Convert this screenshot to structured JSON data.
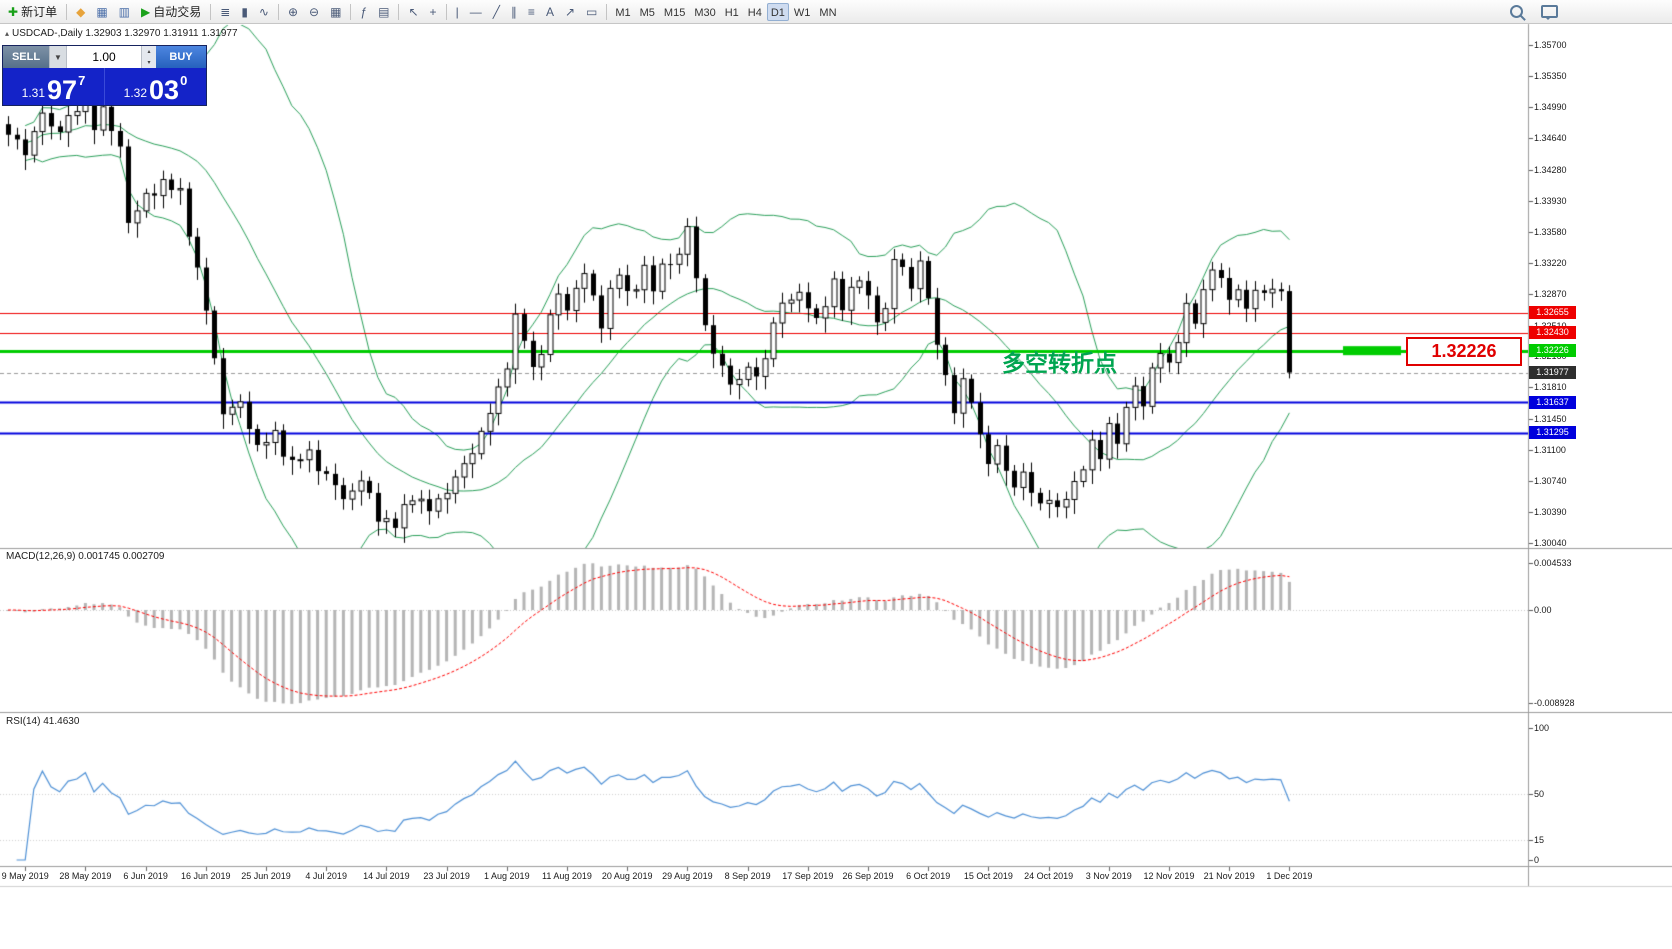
{
  "icons": {
    "collapse": "▴",
    "spinner_up": "▴",
    "spinner_down": "▾",
    "dropdown": "▼"
  },
  "toolbar": {
    "groups": [
      [
        {
          "name": "new-order-button",
          "icon": "plus-icon",
          "glyph": "✚",
          "glyph_color": "#18a018",
          "label": "新订单"
        }
      ],
      [
        {
          "name": "favorites-button",
          "icon": "diamond-icon",
          "glyph": "◆",
          "glyph_color": "#e7a33b"
        },
        {
          "name": "new-chart-button",
          "icon": "window-icon",
          "glyph": "▦",
          "glyph_color": "#4a6ea8"
        },
        {
          "name": "tile-windows-button",
          "icon": "tile-icon",
          "glyph": "▥",
          "glyph_color": "#4a6ea8"
        },
        {
          "name": "algo-trading-button",
          "icon": "play-icon",
          "glyph": "▶",
          "glyph_color": "#1ba11b",
          "label": "自动交易"
        }
      ],
      [
        {
          "name": "bar-chart-button",
          "icon": "bar-chart-icon",
          "glyph": "≣"
        },
        {
          "name": "candle-chart-button",
          "icon": "candlestick-icon",
          "glyph": "▮"
        },
        {
          "name": "line-chart-button",
          "icon": "line-chart-icon",
          "glyph": "∿"
        }
      ],
      [
        {
          "name": "zoom-in-button",
          "icon": "zoom-in-icon",
          "glyph": "⊕"
        },
        {
          "name": "zoom-out-button",
          "icon": "zoom-out-icon",
          "glyph": "⊖"
        },
        {
          "name": "grid-button",
          "icon": "grid-icon",
          "glyph": "▦"
        }
      ],
      [
        {
          "name": "indicators-button",
          "icon": "function-icon",
          "glyph": "ƒ"
        },
        {
          "name": "objects-list-button",
          "icon": "objects-icon",
          "glyph": "▤"
        }
      ],
      [
        {
          "name": "cursor-button",
          "icon": "cursor-icon",
          "glyph": "↖"
        },
        {
          "name": "crosshair-button",
          "icon": "crosshair-icon",
          "glyph": "+"
        }
      ],
      [
        {
          "name": "vertical-line-button",
          "icon": "vertical-line-icon",
          "glyph": "|"
        },
        {
          "name": "horizontal-line-button",
          "icon": "horizontal-line-icon",
          "glyph": "—"
        },
        {
          "name": "trendline-button",
          "icon": "trendline-icon",
          "glyph": "╱"
        },
        {
          "name": "channel-button",
          "icon": "channel-icon",
          "glyph": "∥"
        },
        {
          "name": "fibonacci-button",
          "icon": "fibonacci-icon",
          "glyph": "≡"
        },
        {
          "name": "text-button",
          "icon": "text-icon",
          "glyph": "A"
        },
        {
          "name": "arrow-object-button",
          "icon": "arrow-icon",
          "glyph": "↗"
        },
        {
          "name": "shapes-button",
          "icon": "rectangle-icon",
          "glyph": "▭"
        }
      ]
    ],
    "timeframes": [
      {
        "label": "M1"
      },
      {
        "label": "M5"
      },
      {
        "label": "M15"
      },
      {
        "label": "M30"
      },
      {
        "label": "H1"
      },
      {
        "label": "H4"
      },
      {
        "label": "D1",
        "active": true
      },
      {
        "label": "W1"
      },
      {
        "label": "MN"
      }
    ]
  },
  "symbol_header": {
    "text": "USDCAD-,Daily 1.32903 1.32970 1.31911 1.31977"
  },
  "trade_panel": {
    "sell_label": "SELL",
    "buy_label": "BUY",
    "volume": "1.00",
    "sell_price": {
      "prefix": "1.31",
      "big": "97",
      "sup": "7"
    },
    "buy_price": {
      "prefix": "1.32",
      "big": "03",
      "sup": "0"
    }
  },
  "price_scale": {
    "ticks": [
      "1.35700",
      "1.35350",
      "1.34990",
      "1.34640",
      "1.34280",
      "1.33930",
      "1.33580",
      "1.33220",
      "1.32870",
      "1.32510",
      "1.32160",
      "1.31810",
      "1.31450",
      "1.31100",
      "1.30740",
      "1.30390",
      "1.30040"
    ]
  },
  "levels": [
    {
      "price": 1.32655,
      "label": "1.32655",
      "color": "#ee0000",
      "width": 1
    },
    {
      "price": 1.3243,
      "label": "1.32430",
      "color": "#ee0000",
      "width": 1
    },
    {
      "price": 1.32226,
      "label": "1.32226",
      "color": "#00cc00",
      "width": 3
    },
    {
      "price": 1.31637,
      "label": "1.31637",
      "color": "#0000dd",
      "width": 2
    },
    {
      "price": 1.31295,
      "label": "1.31295",
      "color": "#0000dd",
      "width": 2
    }
  ],
  "current_price": {
    "value": 1.31977,
    "label": "1.31977",
    "tag_bg": "#2e2e2e"
  },
  "callout": {
    "text": "1.32226"
  },
  "annotation": {
    "text": "多空转折点",
    "color": "#00a550"
  },
  "macd_panel": {
    "label": "MACD(12,26,9)",
    "values": "0.001745 0.002709",
    "scale": [
      "0.004533",
      "0.00",
      "-0.008928"
    ]
  },
  "rsi_panel": {
    "label": "RSI(14)",
    "value": "41.4630",
    "scale": [
      "100",
      "50",
      "15",
      "0"
    ]
  },
  "time_axis": {
    "labels": [
      "9 May 2019",
      "28 May 2019",
      "6 Jun 2019",
      "16 Jun 2019",
      "25 Jun 2019",
      "4 Jul 2019",
      "14 Jul 2019",
      "23 Jul 2019",
      "1 Aug 2019",
      "11 Aug 2019",
      "20 Aug 2019",
      "29 Aug 2019",
      "8 Sep 2019",
      "17 Sep 2019",
      "26 Sep 2019",
      "6 Oct 2019",
      "15 Oct 2019",
      "24 Oct 2019",
      "3 Nov 2019",
      "12 Nov 2019",
      "21 Nov 2019",
      "1 Dec 2019"
    ]
  },
  "chart_data": {
    "type": "candlestick",
    "symbol": "USDCAD-",
    "timeframe": "Daily",
    "bars": 150,
    "price_range": [
      1.3004,
      1.357
    ],
    "last_bar": {
      "open": 1.32903,
      "high": 1.3297,
      "low": 1.31911,
      "close": 1.31977
    },
    "h_lines": [
      1.32655,
      1.3243,
      1.32226,
      1.31637,
      1.31295
    ],
    "overlays": [
      {
        "name": "bollinger-bands",
        "period": 20,
        "deviation": 2,
        "color": "#2aa05a"
      }
    ],
    "indicators": [
      {
        "name": "MACD",
        "params": [
          12,
          26,
          9
        ],
        "values": [
          0.001745,
          0.002709
        ],
        "scale_range": [
          -0.008928,
          0.004533
        ]
      },
      {
        "name": "RSI",
        "params": [
          14
        ],
        "last_value": 41.463,
        "scale_range": [
          0,
          100
        ]
      }
    ],
    "close_anchors": [
      [
        0,
        1.3468
      ],
      [
        2,
        1.3448
      ],
      [
        4,
        1.3495
      ],
      [
        5,
        1.347
      ],
      [
        7,
        1.3487
      ],
      [
        9,
        1.3505
      ],
      [
        10,
        1.348
      ],
      [
        11,
        1.3498
      ],
      [
        12,
        1.347
      ],
      [
        13,
        1.3455
      ],
      [
        14,
        1.337
      ],
      [
        16,
        1.3395
      ],
      [
        18,
        1.3415
      ],
      [
        20,
        1.34
      ],
      [
        21,
        1.336
      ],
      [
        23,
        1.3268
      ],
      [
        25,
        1.3155
      ],
      [
        27,
        1.316
      ],
      [
        29,
        1.3115
      ],
      [
        31,
        1.3125
      ],
      [
        33,
        1.3095
      ],
      [
        35,
        1.3105
      ],
      [
        37,
        1.308
      ],
      [
        39,
        1.3055
      ],
      [
        41,
        1.3075
      ],
      [
        43,
        1.3035
      ],
      [
        45,
        1.3023
      ],
      [
        47,
        1.306
      ],
      [
        49,
        1.304
      ],
      [
        51,
        1.3065
      ],
      [
        53,
        1.309
      ],
      [
        55,
        1.313
      ],
      [
        57,
        1.3175
      ],
      [
        58,
        1.321
      ],
      [
        59,
        1.326
      ],
      [
        60,
        1.3235
      ],
      [
        61,
        1.32
      ],
      [
        62,
        1.3225
      ],
      [
        63,
        1.326
      ],
      [
        64,
        1.3285
      ],
      [
        65,
        1.327
      ],
      [
        66,
        1.3295
      ],
      [
        67,
        1.331
      ],
      [
        68,
        1.328
      ],
      [
        69,
        1.3255
      ],
      [
        70,
        1.329
      ],
      [
        71,
        1.331
      ],
      [
        72,
        1.3285
      ],
      [
        74,
        1.3315
      ],
      [
        75,
        1.329
      ],
      [
        76,
        1.332
      ],
      [
        78,
        1.333
      ],
      [
        79,
        1.336
      ],
      [
        80,
        1.331
      ],
      [
        81,
        1.325
      ],
      [
        82,
        1.322
      ],
      [
        83,
        1.32
      ],
      [
        85,
        1.3185
      ],
      [
        86,
        1.3205
      ],
      [
        87,
        1.319
      ],
      [
        88,
        1.322
      ],
      [
        89,
        1.325
      ],
      [
        90,
        1.3275
      ],
      [
        92,
        1.329
      ],
      [
        93,
        1.327
      ],
      [
        94,
        1.3255
      ],
      [
        95,
        1.328
      ],
      [
        96,
        1.33
      ],
      [
        97,
        1.327
      ],
      [
        98,
        1.329
      ],
      [
        99,
        1.331
      ],
      [
        100,
        1.328
      ],
      [
        101,
        1.3255
      ],
      [
        102,
        1.327
      ],
      [
        103,
        1.333
      ],
      [
        104,
        1.3315
      ],
      [
        105,
        1.329
      ],
      [
        106,
        1.333
      ],
      [
        107,
        1.328
      ],
      [
        108,
        1.323
      ],
      [
        109,
        1.319
      ],
      [
        110,
        1.316
      ],
      [
        111,
        1.3185
      ],
      [
        112,
        1.3165
      ],
      [
        113,
        1.3125
      ],
      [
        114,
        1.31
      ],
      [
        115,
        1.311
      ],
      [
        116,
        1.3085
      ],
      [
        117,
        1.307
      ],
      [
        118,
        1.3085
      ],
      [
        119,
        1.306
      ],
      [
        120,
        1.3045
      ],
      [
        121,
        1.306
      ],
      [
        122,
        1.304
      ],
      [
        123,
        1.3055
      ],
      [
        124,
        1.307
      ],
      [
        125,
        1.3095
      ],
      [
        126,
        1.3115
      ],
      [
        127,
        1.31
      ],
      [
        128,
        1.314
      ],
      [
        129,
        1.312
      ],
      [
        130,
        1.3155
      ],
      [
        131,
        1.318
      ],
      [
        132,
        1.3165
      ],
      [
        133,
        1.32
      ],
      [
        134,
        1.322
      ],
      [
        135,
        1.3205
      ],
      [
        136,
        1.324
      ],
      [
        137,
        1.327
      ],
      [
        138,
        1.3255
      ],
      [
        139,
        1.329
      ],
      [
        140,
        1.332
      ],
      [
        141,
        1.33
      ],
      [
        142,
        1.328
      ],
      [
        143,
        1.3295
      ],
      [
        144,
        1.327
      ],
      [
        145,
        1.329
      ],
      [
        146,
        1.3285
      ],
      [
        147,
        1.33
      ],
      [
        148,
        1.329
      ],
      [
        149,
        1.3198
      ]
    ]
  }
}
